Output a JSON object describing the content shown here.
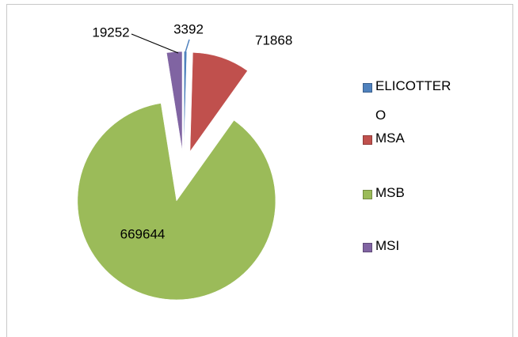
{
  "chart_data": {
    "type": "pie",
    "categories": [
      "ELICOTTERO",
      "MSA",
      "MSB",
      "MSI"
    ],
    "values": [
      3392,
      71868,
      669644,
      19252
    ],
    "colors": [
      "#4f81bd",
      "#c0504d",
      "#9bbb59",
      "#8064a2"
    ],
    "legend": "right"
  }
}
